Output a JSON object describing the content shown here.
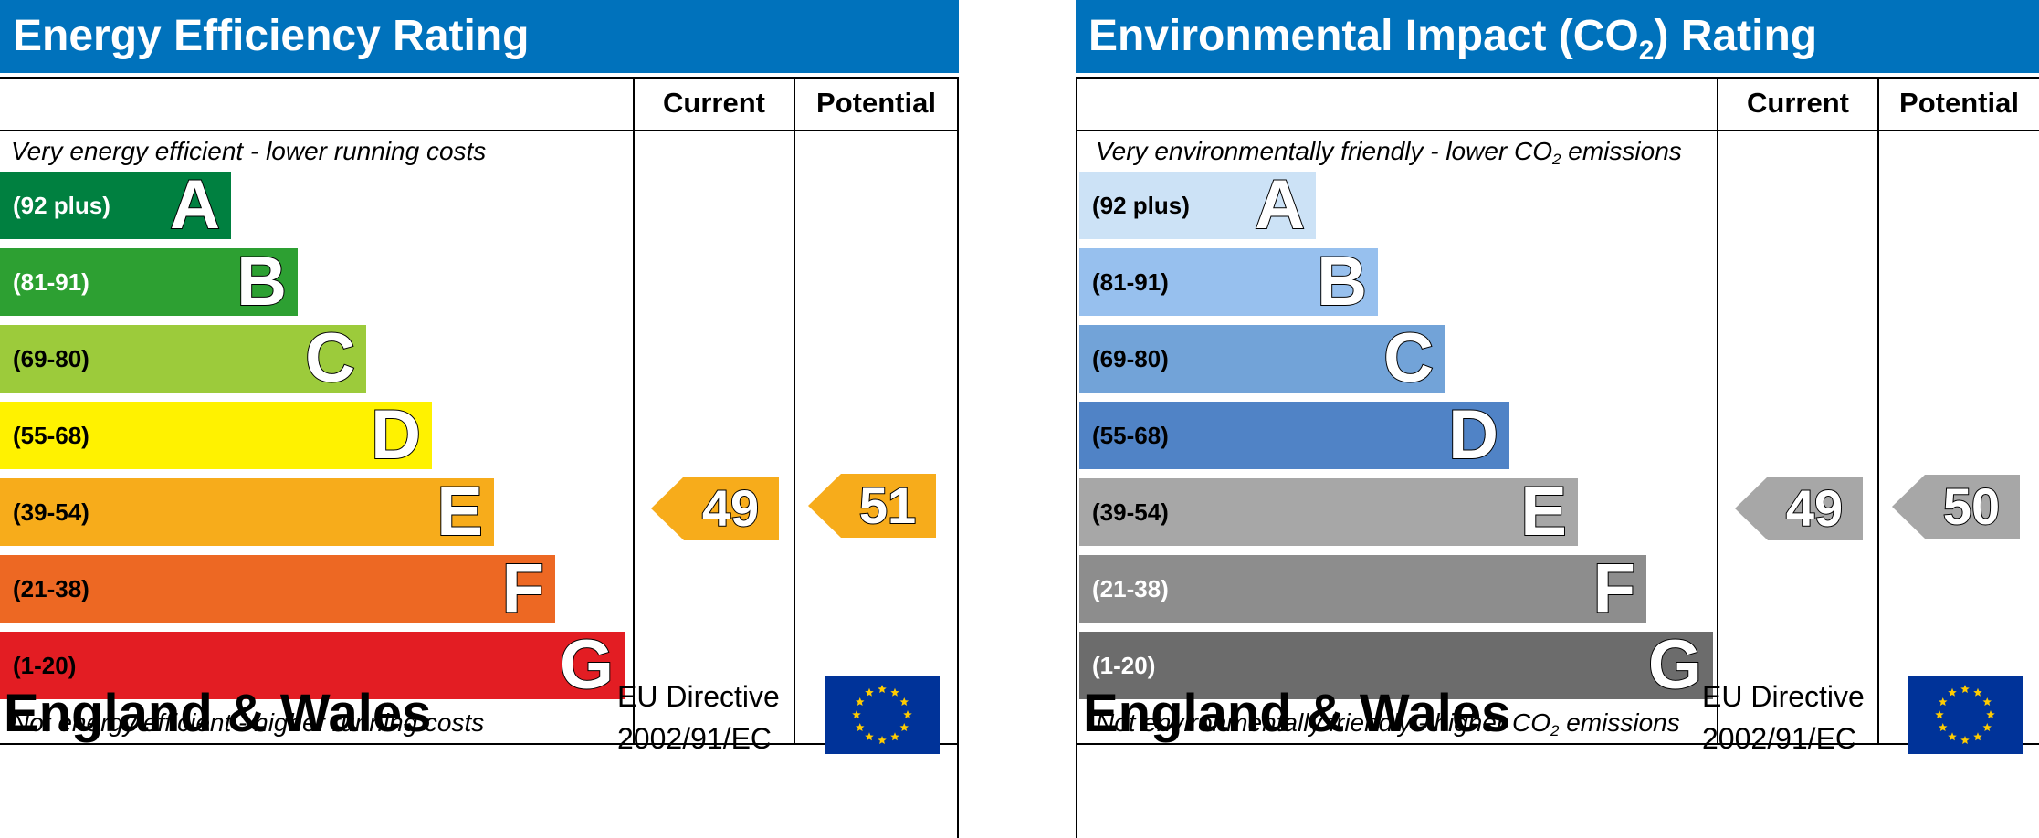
{
  "chart_data": [
    {
      "type": "bar",
      "title": "Energy Efficiency Rating",
      "columns": [
        "Current",
        "Potential"
      ],
      "top_note": "Very energy efficient - lower running costs",
      "bottom_note": "Not energy efficient - higher running costs",
      "bands": [
        {
          "letter": "A",
          "range": "(92 plus)",
          "color": "#008040",
          "text_color": "#ffffff"
        },
        {
          "letter": "B",
          "range": "(81-91)",
          "color": "#2da032",
          "text_color": "#ffffff"
        },
        {
          "letter": "C",
          "range": "(69-80)",
          "color": "#9ccb3b",
          "text_color": "#000000"
        },
        {
          "letter": "D",
          "range": "(55-68)",
          "color": "#fff200",
          "text_color": "#000000"
        },
        {
          "letter": "E",
          "range": "(39-54)",
          "color": "#f7ac1b",
          "text_color": "#000000"
        },
        {
          "letter": "F",
          "range": "(21-38)",
          "color": "#ed6823",
          "text_color": "#000000"
        },
        {
          "letter": "G",
          "range": "(1-20)",
          "color": "#e31d23",
          "text_color": "#000000"
        }
      ],
      "current": {
        "value": 49,
        "band": "E",
        "color": "#f7ac1b"
      },
      "potential": {
        "value": 51,
        "band": "E",
        "color": "#f7ac1b"
      },
      "footer": "England & Wales",
      "eu_directive": [
        "EU Directive",
        "2002/91/EC"
      ]
    },
    {
      "type": "bar",
      "title": "Environmental Impact (CO",
      "title_sub": "2",
      "title_end": ") Rating",
      "columns": [
        "Current",
        "Potential"
      ],
      "top_note": "Very environmentally friendly - lower CO",
      "top_note_sub": "2",
      "top_note_end": " emissions",
      "bottom_note": "Not environmentally friendly - higher CO",
      "bottom_note_sub": "2",
      "bottom_note_end": " emissions",
      "bands": [
        {
          "letter": "A",
          "range": "(92 plus)",
          "color": "#cce2f6",
          "text_color": "#000000"
        },
        {
          "letter": "B",
          "range": "(81-91)",
          "color": "#97c0ee",
          "text_color": "#000000"
        },
        {
          "letter": "C",
          "range": "(69-80)",
          "color": "#72a3d8",
          "text_color": "#000000"
        },
        {
          "letter": "D",
          "range": "(55-68)",
          "color": "#5083c6",
          "text_color": "#000000"
        },
        {
          "letter": "E",
          "range": "(39-54)",
          "color": "#a7a7a7",
          "text_color": "#000000"
        },
        {
          "letter": "F",
          "range": "(21-38)",
          "color": "#8d8d8d",
          "text_color": "#ffffff"
        },
        {
          "letter": "G",
          "range": "(1-20)",
          "color": "#6c6c6c",
          "text_color": "#ffffff"
        }
      ],
      "current": {
        "value": 49,
        "band": "E",
        "color": "#a7a7a7"
      },
      "potential": {
        "value": 50,
        "band": "E",
        "color": "#a7a7a7"
      },
      "footer": "England & Wales",
      "eu_directive": [
        "EU Directive",
        "2002/91/EC"
      ]
    }
  ]
}
